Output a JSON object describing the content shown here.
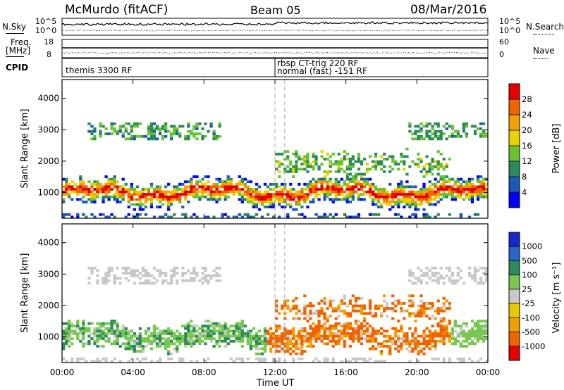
{
  "header": {
    "title": "McMurdo (fitACF)",
    "beam": "Beam 05",
    "date": "08/Mar/2016"
  },
  "noise_panel": {
    "left_label": "N.Sky",
    "right_label": "N.Search",
    "ticks_left": [
      "10^5",
      "10^0"
    ],
    "ticks_right": [
      "10^5",
      "10^0"
    ]
  },
  "freq_panel": {
    "left_label_1": "Freq.",
    "left_label_2": "[MHz]",
    "right_label": "Nave",
    "ticks_left": [
      "18",
      "8"
    ],
    "ticks_right": [
      "60",
      "0"
    ]
  },
  "cpid_panel": {
    "label": "CPID",
    "programs": [
      "themis 3300 RF",
      "rbsp CT-trig 220 RF",
      "normal (fast) -151 RF"
    ]
  },
  "chart_data": [
    {
      "type": "heatmap",
      "name": "Power",
      "ylabel": "Slant Range [km]",
      "xlabel": "Time UT",
      "x_ticks": [
        "00:00",
        "04:00",
        "08:00",
        "12:00",
        "16:00",
        "20:00",
        "00:00"
      ],
      "x_range_hours": [
        0,
        24
      ],
      "y_ticks": [
        1000,
        2000,
        3000,
        4000
      ],
      "ylim": [
        180,
        4600
      ],
      "colorbar_label": "Power [dB]",
      "colorbar_ticks": [
        "4",
        "8",
        "12",
        "16",
        "20",
        "24",
        "28"
      ],
      "colorbar_range": [
        0,
        32
      ],
      "colors": [
        "#0000ff",
        "#1e5ab4",
        "#2d8a5a",
        "#6cc235",
        "#e8d200",
        "#f5a000",
        "#f06400",
        "#e60000"
      ],
      "marker_lines_hours": [
        12.0,
        12.55
      ]
    },
    {
      "type": "heatmap",
      "name": "Velocity",
      "ylabel": "Slant Range [km]",
      "xlabel": "Time UT",
      "x_ticks": [
        "00:00",
        "04:00",
        "08:00",
        "12:00",
        "16:00",
        "20:00",
        "00:00"
      ],
      "x_range_hours": [
        0,
        24
      ],
      "y_ticks": [
        1000,
        2000,
        3000,
        4000
      ],
      "ylim": [
        180,
        4600
      ],
      "colorbar_label": "Velocity [m s⁻¹]",
      "colorbar_ticks": [
        "1000",
        "500",
        "100",
        "25",
        "-25",
        "-100",
        "-500",
        "-1000"
      ],
      "colors": [
        "#1428c8",
        "#2d64c8",
        "#2d8a5a",
        "#78c850",
        "#c8c8c8",
        "#e6c800",
        "#f0a000",
        "#f06400",
        "#e60000"
      ],
      "marker_lines_hours": [
        12.0,
        12.55
      ]
    }
  ]
}
